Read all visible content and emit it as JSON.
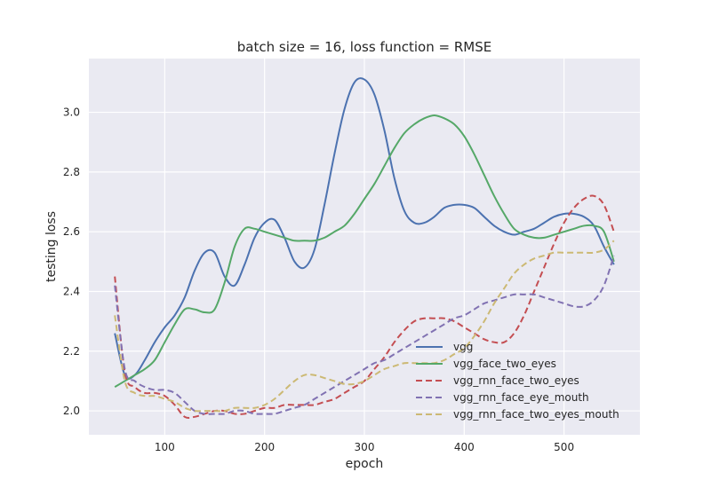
{
  "chart_data": {
    "type": "line",
    "title": "batch size = 16, loss function = RMSE",
    "xlabel": "epoch",
    "ylabel": "testing loss",
    "xlim": [
      24,
      576
    ],
    "ylim": [
      1.92,
      3.18
    ],
    "xticks": [
      100,
      200,
      300,
      400,
      500
    ],
    "yticks": [
      2.0,
      2.2,
      2.4,
      2.6,
      2.8,
      3.0
    ],
    "ytick_labels": [
      "2.0",
      "2.2",
      "2.4",
      "2.6",
      "2.8",
      "3.0"
    ],
    "grid": true,
    "legend_position": "lower-right",
    "series": [
      {
        "name": "vgg",
        "color": "#4c72b0",
        "dash": "solid",
        "x": [
          50,
          60,
          70,
          80,
          90,
          100,
          110,
          120,
          130,
          140,
          150,
          160,
          170,
          180,
          190,
          200,
          210,
          220,
          230,
          240,
          250,
          260,
          270,
          280,
          290,
          300,
          310,
          320,
          330,
          340,
          350,
          360,
          370,
          380,
          390,
          400,
          410,
          420,
          430,
          440,
          450,
          460,
          470,
          480,
          490,
          500,
          510,
          520,
          530,
          540,
          550
        ],
        "y": [
          2.26,
          2.12,
          2.12,
          2.17,
          2.23,
          2.28,
          2.32,
          2.38,
          2.47,
          2.53,
          2.53,
          2.45,
          2.42,
          2.49,
          2.58,
          2.63,
          2.64,
          2.58,
          2.5,
          2.48,
          2.54,
          2.69,
          2.86,
          3.01,
          3.1,
          3.11,
          3.06,
          2.94,
          2.78,
          2.67,
          2.63,
          2.63,
          2.65,
          2.68,
          2.69,
          2.69,
          2.68,
          2.65,
          2.62,
          2.6,
          2.59,
          2.6,
          2.61,
          2.63,
          2.65,
          2.66,
          2.66,
          2.65,
          2.62,
          2.55,
          2.49
        ]
      },
      {
        "name": "vgg_face_two_eyes",
        "color": "#55a868",
        "dash": "solid",
        "x": [
          50,
          60,
          70,
          80,
          90,
          100,
          110,
          120,
          130,
          140,
          150,
          160,
          170,
          180,
          190,
          200,
          210,
          220,
          230,
          240,
          250,
          260,
          270,
          280,
          290,
          300,
          310,
          320,
          330,
          340,
          350,
          360,
          370,
          380,
          390,
          400,
          410,
          420,
          430,
          440,
          450,
          460,
          470,
          480,
          490,
          500,
          510,
          520,
          530,
          540,
          550
        ],
        "y": [
          2.08,
          2.1,
          2.12,
          2.14,
          2.17,
          2.23,
          2.29,
          2.34,
          2.34,
          2.33,
          2.34,
          2.43,
          2.55,
          2.61,
          2.61,
          2.6,
          2.59,
          2.58,
          2.57,
          2.57,
          2.57,
          2.58,
          2.6,
          2.62,
          2.66,
          2.71,
          2.76,
          2.82,
          2.88,
          2.93,
          2.96,
          2.98,
          2.99,
          2.98,
          2.96,
          2.92,
          2.86,
          2.79,
          2.72,
          2.66,
          2.61,
          2.59,
          2.58,
          2.58,
          2.59,
          2.6,
          2.61,
          2.62,
          2.62,
          2.6,
          2.5
        ]
      },
      {
        "name": "vgg_rnn_face_two_eyes",
        "color": "#c44e52",
        "dash": "dashed",
        "x": [
          50,
          60,
          70,
          80,
          90,
          100,
          110,
          120,
          130,
          140,
          150,
          160,
          170,
          180,
          190,
          200,
          210,
          220,
          230,
          240,
          250,
          260,
          270,
          280,
          290,
          300,
          310,
          320,
          330,
          340,
          350,
          360,
          370,
          380,
          390,
          400,
          410,
          420,
          430,
          440,
          450,
          460,
          470,
          480,
          490,
          500,
          510,
          520,
          530,
          540,
          550
        ],
        "y": [
          2.45,
          2.13,
          2.08,
          2.06,
          2.06,
          2.05,
          2.02,
          1.98,
          1.98,
          1.99,
          2.0,
          2.0,
          1.99,
          1.99,
          2.0,
          2.01,
          2.01,
          2.02,
          2.02,
          2.02,
          2.02,
          2.03,
          2.04,
          2.06,
          2.08,
          2.1,
          2.14,
          2.18,
          2.23,
          2.27,
          2.3,
          2.31,
          2.31,
          2.31,
          2.3,
          2.28,
          2.26,
          2.24,
          2.23,
          2.23,
          2.26,
          2.32,
          2.4,
          2.48,
          2.56,
          2.63,
          2.68,
          2.71,
          2.72,
          2.69,
          2.6
        ]
      },
      {
        "name": "vgg_rnn_face_eye_mouth",
        "color": "#8172b2",
        "dash": "dashed",
        "x": [
          50,
          60,
          70,
          80,
          90,
          100,
          110,
          120,
          130,
          140,
          150,
          160,
          170,
          180,
          190,
          200,
          210,
          220,
          230,
          240,
          250,
          260,
          270,
          280,
          290,
          300,
          310,
          320,
          330,
          340,
          350,
          360,
          370,
          380,
          390,
          400,
          410,
          420,
          430,
          440,
          450,
          460,
          470,
          480,
          490,
          500,
          510,
          520,
          530,
          540,
          550
        ],
        "y": [
          2.42,
          2.14,
          2.1,
          2.08,
          2.07,
          2.07,
          2.06,
          2.03,
          2.0,
          1.99,
          1.99,
          1.99,
          2.0,
          2.0,
          1.99,
          1.99,
          1.99,
          2.0,
          2.01,
          2.02,
          2.04,
          2.06,
          2.08,
          2.1,
          2.12,
          2.14,
          2.16,
          2.17,
          2.19,
          2.21,
          2.23,
          2.25,
          2.27,
          2.29,
          2.31,
          2.32,
          2.34,
          2.36,
          2.37,
          2.38,
          2.39,
          2.39,
          2.39,
          2.38,
          2.37,
          2.36,
          2.35,
          2.35,
          2.37,
          2.42,
          2.52
        ]
      },
      {
        "name": "vgg_rnn_face_two_eyes_mouth",
        "color": "#ccb974",
        "dash": "dashed",
        "x": [
          50,
          60,
          70,
          80,
          90,
          100,
          110,
          120,
          130,
          140,
          150,
          160,
          170,
          180,
          190,
          200,
          210,
          220,
          230,
          240,
          250,
          260,
          270,
          280,
          290,
          300,
          310,
          320,
          330,
          340,
          350,
          360,
          370,
          380,
          390,
          400,
          410,
          420,
          430,
          440,
          450,
          460,
          470,
          480,
          490,
          500,
          510,
          520,
          530,
          540,
          550
        ],
        "y": [
          2.32,
          2.1,
          2.06,
          2.05,
          2.05,
          2.04,
          2.03,
          2.01,
          2.0,
          2.0,
          2.0,
          2.0,
          2.01,
          2.01,
          2.01,
          2.02,
          2.04,
          2.07,
          2.1,
          2.12,
          2.12,
          2.11,
          2.1,
          2.09,
          2.09,
          2.1,
          2.12,
          2.14,
          2.15,
          2.16,
          2.16,
          2.16,
          2.16,
          2.17,
          2.19,
          2.21,
          2.25,
          2.3,
          2.36,
          2.41,
          2.46,
          2.49,
          2.51,
          2.52,
          2.53,
          2.53,
          2.53,
          2.53,
          2.53,
          2.54,
          2.57
        ]
      }
    ]
  }
}
